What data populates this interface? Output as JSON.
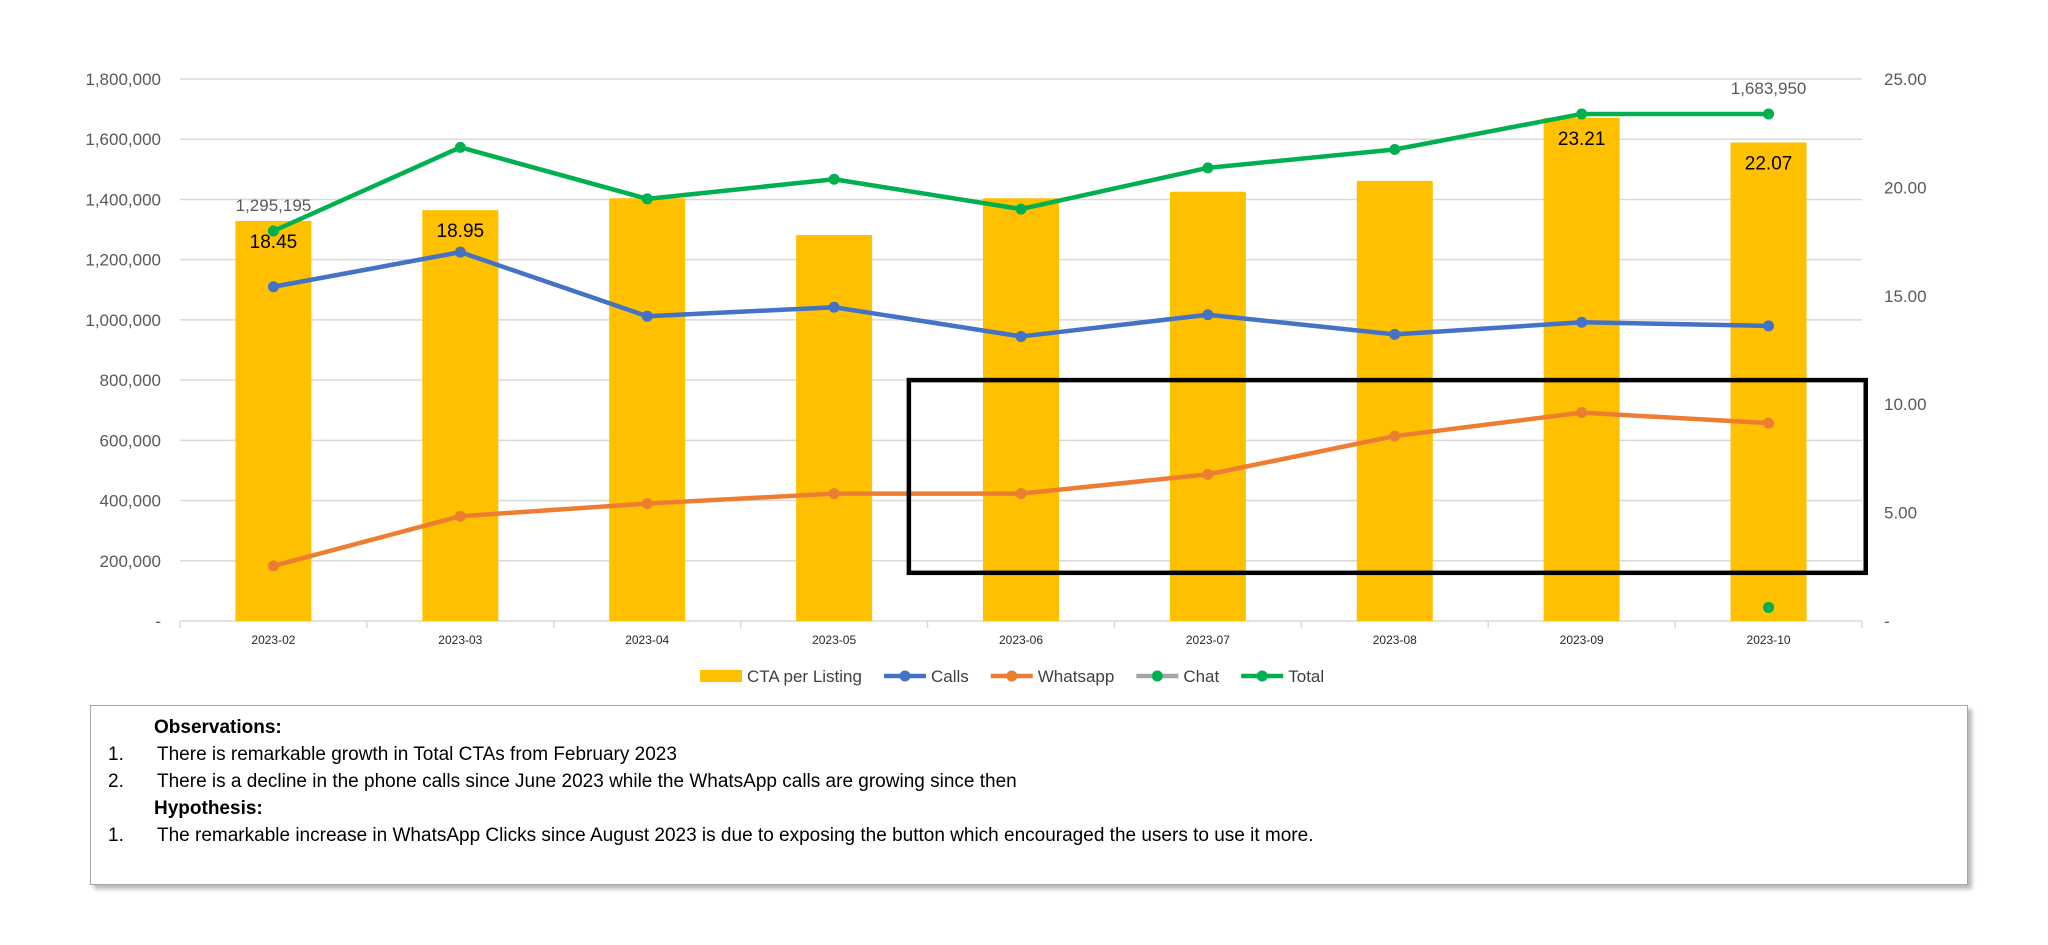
{
  "chart_data": {
    "type": "bar",
    "categories": [
      "2023-02",
      "2023-03",
      "2023-04",
      "2023-05",
      "2023-06",
      "2023-07",
      "2023-08",
      "2023-09",
      "2023-10"
    ],
    "series": [
      {
        "name": "CTA per Listing",
        "type": "bar",
        "axis": "right",
        "color": "#FFC000",
        "values": [
          18.45,
          18.95,
          19.5,
          17.8,
          19.5,
          19.8,
          20.3,
          23.21,
          22.07
        ]
      },
      {
        "name": "Calls",
        "type": "line",
        "axis": "left",
        "color": "#4472C4",
        "values": [
          1110000,
          1225000,
          1012000,
          1042000,
          945000,
          1017000,
          952000,
          992000,
          980000
        ]
      },
      {
        "name": "Whatsapp",
        "type": "line",
        "axis": "left",
        "color": "#ED7D31",
        "values": [
          183000,
          348000,
          390000,
          423000,
          423000,
          487000,
          614000,
          692000,
          657000
        ]
      },
      {
        "name": "Chat",
        "type": "line",
        "axis": "left",
        "color": "#A5A5A5",
        "values": [
          null,
          null,
          null,
          null,
          null,
          null,
          null,
          null,
          45000
        ]
      },
      {
        "name": "Total",
        "type": "line",
        "axis": "left",
        "color": "#00B050",
        "values": [
          1295195,
          1573000,
          1402000,
          1467000,
          1368000,
          1505000,
          1566000,
          1683950,
          1683950
        ]
      }
    ],
    "bar_labels": [
      {
        "index": 0,
        "text": "18.45"
      },
      {
        "index": 1,
        "text": "18.95"
      },
      {
        "index": 7,
        "text": "23.21"
      },
      {
        "index": 8,
        "text": "22.07"
      }
    ],
    "total_labels": [
      {
        "index": 0,
        "text": "1,295,195"
      },
      {
        "index": 8,
        "text": "1,683,950"
      }
    ],
    "y_left": {
      "min": 0,
      "max": 1800000,
      "ticks": [
        "-",
        "200,000",
        "400,000",
        "600,000",
        "800,000",
        "1,000,000",
        "1,200,000",
        "1,400,000",
        "1,600,000",
        "1,800,000"
      ]
    },
    "y_right": {
      "min": 0,
      "max": 25,
      "ticks": [
        "-",
        "5.00",
        "10.00",
        "15.00",
        "20.00",
        "25.00"
      ]
    },
    "highlight_box": {
      "from_category": "2023-06",
      "to_category": "2023-10",
      "y_left_from": 160000,
      "y_left_to": 800000
    },
    "grid": true,
    "legend_position": "bottom",
    "colors": {
      "gridline": "#D9D9D9",
      "axis_text": "#595959",
      "box": "#000000"
    }
  },
  "notes": {
    "observations_title": "Observations:",
    "observations": [
      {
        "num": "1.",
        "text": "There is remarkable growth in Total CTAs from February 2023"
      },
      {
        "num": "2.",
        "text": "There is a decline in the phone calls since June 2023 while the WhatsApp calls are growing since then"
      }
    ],
    "hypothesis_title": "Hypothesis:",
    "hypotheses": [
      {
        "num": "1.",
        "text": "The remarkable increase in WhatsApp Clicks since August 2023 is due to exposing the button which encouraged the users to use it more."
      }
    ]
  }
}
